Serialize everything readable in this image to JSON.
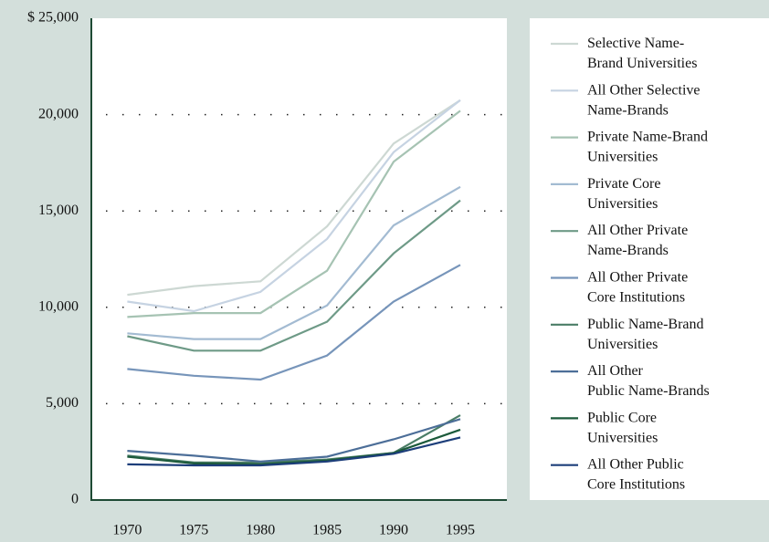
{
  "chart_data": {
    "type": "line",
    "x": [
      1970,
      1975,
      1980,
      1985,
      1990,
      1995
    ],
    "xlim": [
      1967.3,
      1998.5
    ],
    "ylim": [
      0,
      25000
    ],
    "yticks": [
      0,
      {
        "value": 5000,
        "label": "5,000"
      },
      {
        "value": 10000,
        "label": "10,000"
      },
      {
        "value": 15000,
        "label": "15,000"
      },
      {
        "value": 20000,
        "label": "20,000"
      },
      {
        "value": 25000,
        "label": "$ 25,000"
      }
    ],
    "grid": true,
    "series": [
      {
        "name": "Selective Name-\nBrand Universities",
        "color": "#cdd8d3",
        "values": [
          10650,
          11100,
          11350,
          14200,
          18500,
          20750
        ]
      },
      {
        "name": "All Other Selective\nName-Brands",
        "color": "#c6d3e2",
        "values": [
          10300,
          9800,
          10800,
          13550,
          18050,
          20750
        ]
      },
      {
        "name": "Private Name-Brand\nUniversities",
        "color": "#a6c3b3",
        "values": [
          9500,
          9700,
          9700,
          11900,
          17550,
          20200
        ]
      },
      {
        "name": "Private Core\nUniversities",
        "color": "#a3bbd2",
        "values": [
          8650,
          8350,
          8350,
          10100,
          14250,
          16250
        ]
      },
      {
        "name": "All Other Private\nName-Brands",
        "color": "#6e9a87",
        "values": [
          8500,
          7750,
          7750,
          9250,
          12800,
          15550
        ]
      },
      {
        "name": "All Other Private\nCore Institutions",
        "color": "#7795ba",
        "values": [
          6800,
          6450,
          6250,
          7500,
          10300,
          12200
        ]
      },
      {
        "name": "Public Name-Brand\nUniversities",
        "color": "#4a7d66",
        "values": [
          2300,
          1950,
          1950,
          2100,
          2450,
          4400
        ]
      },
      {
        "name": "All Other\nPublic Name-Brands",
        "color": "#4c6e98",
        "values": [
          2550,
          2300,
          2000,
          2250,
          3150,
          4200
        ]
      },
      {
        "name": "Public Core\nUniversities",
        "color": "#1c5a3b",
        "values": [
          2250,
          1900,
          1850,
          2050,
          2450,
          3650
        ]
      },
      {
        "name": "All Other Public\nCore Institutions",
        "color": "#1d3e7a",
        "values": [
          1850,
          1800,
          1800,
          2000,
          2400,
          3250
        ]
      }
    ]
  }
}
